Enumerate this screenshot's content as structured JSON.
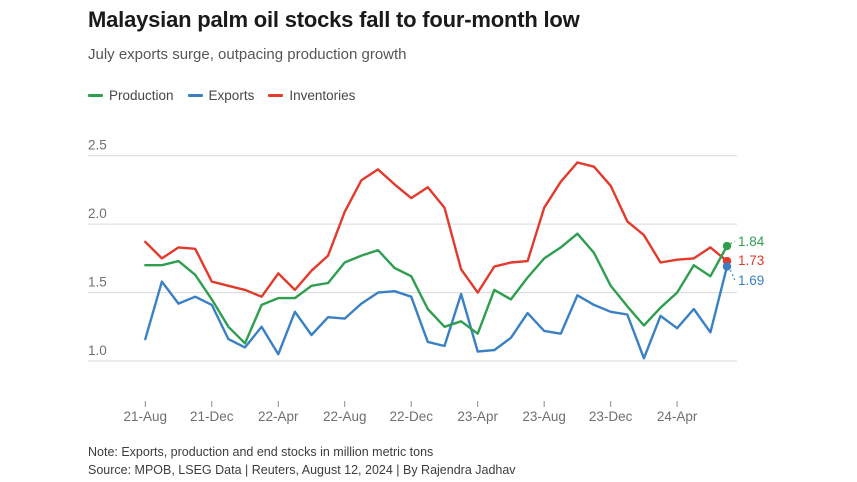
{
  "header": {
    "title": "Malaysian palm oil stocks fall to four-month low",
    "subtitle": "July exports surge, outpacing production growth"
  },
  "legend": {
    "items": [
      {
        "label": "Production",
        "color": "#2f9e4f"
      },
      {
        "label": "Exports",
        "color": "#3a80c4"
      },
      {
        "label": "Inventories",
        "color": "#e23a2c"
      }
    ]
  },
  "chart_data": {
    "type": "line",
    "title": "Malaysian palm oil stocks fall to four-month low",
    "subtitle": "July exports surge, outpacing production growth",
    "unit": "million metric tons",
    "x_unit": "month",
    "points_count": 36,
    "x_range": [
      "Aug-2021",
      "Jul-2024"
    ],
    "ylim": [
      0.95,
      2.56
    ],
    "grid": "horizontal",
    "legend_position": "top-left",
    "y_ticks": [
      "1.0",
      "1.5",
      "2.0",
      "2.5"
    ],
    "x_ticks": [
      {
        "index": 0,
        "label": "21-Aug"
      },
      {
        "index": 4,
        "label": "21-Dec"
      },
      {
        "index": 8,
        "label": "22-Apr"
      },
      {
        "index": 12,
        "label": "22-Aug"
      },
      {
        "index": 16,
        "label": "22-Dec"
      },
      {
        "index": 20,
        "label": "23-Apr"
      },
      {
        "index": 24,
        "label": "23-Aug"
      },
      {
        "index": 28,
        "label": "23-Dec"
      },
      {
        "index": 32,
        "label": "24-Apr"
      }
    ],
    "series": [
      {
        "name": "Production",
        "color": "#2f9e4f",
        "end_label": "1.84",
        "values": [
          1.7,
          1.7,
          1.73,
          1.63,
          1.45,
          1.25,
          1.13,
          1.41,
          1.46,
          1.46,
          1.55,
          1.57,
          1.72,
          1.77,
          1.81,
          1.68,
          1.62,
          1.38,
          1.25,
          1.29,
          1.2,
          1.52,
          1.45,
          1.61,
          1.75,
          1.83,
          1.93,
          1.79,
          1.55,
          1.4,
          1.26,
          1.39,
          1.5,
          1.7,
          1.62,
          1.84
        ]
      },
      {
        "name": "Exports",
        "color": "#3a80c4",
        "end_label": "1.69",
        "values": [
          1.16,
          1.58,
          1.42,
          1.47,
          1.41,
          1.16,
          1.1,
          1.25,
          1.05,
          1.36,
          1.19,
          1.32,
          1.31,
          1.42,
          1.5,
          1.51,
          1.47,
          1.14,
          1.11,
          1.49,
          1.07,
          1.08,
          1.17,
          1.35,
          1.22,
          1.2,
          1.48,
          1.41,
          1.36,
          1.34,
          1.02,
          1.33,
          1.24,
          1.38,
          1.21,
          1.69
        ]
      },
      {
        "name": "Inventories",
        "color": "#e23a2c",
        "end_label": "1.73",
        "values": [
          1.87,
          1.75,
          1.83,
          1.82,
          1.58,
          1.55,
          1.52,
          1.47,
          1.64,
          1.52,
          1.66,
          1.77,
          2.09,
          2.32,
          2.4,
          2.29,
          2.19,
          2.27,
          2.12,
          1.67,
          1.5,
          1.69,
          1.72,
          1.73,
          2.12,
          2.31,
          2.45,
          2.42,
          2.28,
          2.02,
          1.92,
          1.72,
          1.74,
          1.75,
          1.83,
          1.73
        ]
      }
    ],
    "colors": {
      "grid": "#d9d9d9",
      "tick": "#8c8c8c",
      "axis_text": "#6f6f6f",
      "title": "#1a1a1a",
      "subtitle": "#53565a",
      "note_text": "#3d3d3d"
    }
  },
  "footer": {
    "note": "Note: Exports, production and end stocks in million metric tons",
    "source": "Source: MPOB, LSEG Data | Reuters, August 12, 2024 | By Rajendra Jadhav"
  }
}
